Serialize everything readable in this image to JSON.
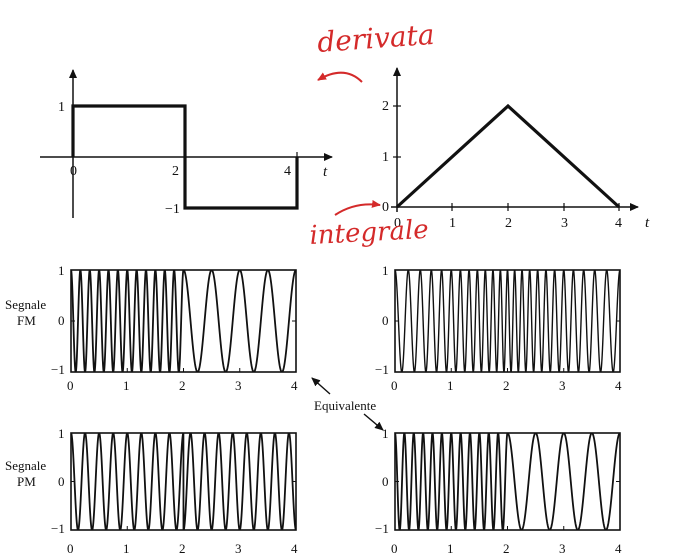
{
  "colors": {
    "ink": "#111111",
    "annotation": "#d42a2a",
    "background": "#ffffff"
  },
  "annotations": {
    "derivative": "derivata",
    "integral": "integrale"
  },
  "labels": {
    "fm_line1": "Segnale",
    "fm_line2": "FM",
    "pm_line1": "Segnale",
    "pm_line2": "PM",
    "equivalent": "Equivalente"
  },
  "chart_data": [
    {
      "id": "square",
      "type": "line",
      "x": [
        0,
        0,
        2,
        2,
        4,
        4
      ],
      "y": [
        0,
        1,
        1,
        -1,
        -1,
        0
      ],
      "xticks": [
        "0",
        "2",
        "4"
      ],
      "yticks": [
        "1",
        "-1"
      ],
      "xlabel": "t",
      "xlim": [
        0,
        4
      ],
      "ylim": [
        -1,
        1
      ]
    },
    {
      "id": "triangle",
      "type": "line",
      "x": [
        0,
        2,
        4
      ],
      "y": [
        0,
        2,
        0
      ],
      "xticks": [
        "0",
        "1",
        "2",
        "3",
        "4"
      ],
      "yticks": [
        "0",
        "1",
        "2"
      ],
      "xlabel": "t",
      "xlim": [
        0,
        4
      ],
      "ylim": [
        0,
        2
      ]
    },
    {
      "id": "fm_square",
      "type": "line",
      "description_signal": "frequency modulated cosine, high frequency on 0-2, low frequency on 2-4",
      "xticks": [
        "0",
        "1",
        "2",
        "3",
        "4"
      ],
      "yticks": [
        "1",
        "0",
        "-1"
      ],
      "xlim": [
        0,
        4
      ],
      "ylim": [
        -1,
        1
      ]
    },
    {
      "id": "fm_triangle",
      "type": "line",
      "xticks": [
        "0",
        "1",
        "2",
        "3",
        "4"
      ],
      "yticks": [
        "1",
        "0",
        "-1"
      ],
      "xlim": [
        0,
        4
      ],
      "ylim": [
        -1,
        1
      ]
    },
    {
      "id": "pm_square",
      "type": "line",
      "xticks": [
        "0",
        "1",
        "2",
        "3",
        "4"
      ],
      "yticks": [
        "1",
        "0",
        "-1"
      ],
      "xlim": [
        0,
        4
      ],
      "ylim": [
        -1,
        1
      ]
    },
    {
      "id": "pm_triangle",
      "type": "line",
      "xticks": [
        "0",
        "1",
        "2",
        "3",
        "4"
      ],
      "yticks": [
        "1",
        "0",
        "-1"
      ],
      "xlim": [
        0,
        4
      ],
      "ylim": [
        -1,
        1
      ]
    }
  ]
}
